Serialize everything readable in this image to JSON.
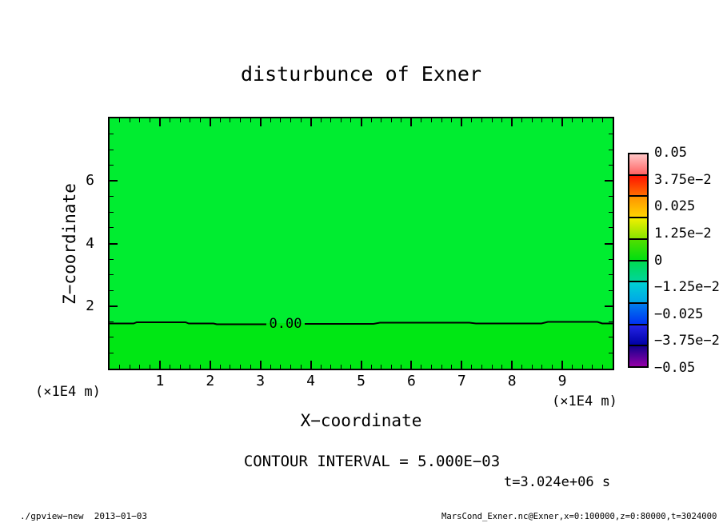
{
  "title": "disturbunce of Exner",
  "chart_data": {
    "type": "heatmap",
    "title": "disturbunce of Exner",
    "xlabel": "X−coordinate",
    "ylabel": "Z−coordinate",
    "x_unit_label": "(×1E4 m)",
    "y_unit_label": "(×1E4 m)",
    "xlim": [
      0,
      10
    ],
    "ylim": [
      0,
      8
    ],
    "x_tick_values": [
      1,
      2,
      3,
      4,
      5,
      6,
      7,
      8,
      9
    ],
    "x_tick_labels": [
      "1",
      "2",
      "3",
      "4",
      "5",
      "6",
      "7",
      "8",
      "9"
    ],
    "y_tick_values": [
      2,
      4,
      6
    ],
    "y_tick_labels": [
      "2",
      "4",
      "6"
    ],
    "x_minor_tick_step": 0.2,
    "y_minor_tick_step": 0.5,
    "field": {
      "description": "tone plot of Exner disturbance, nearly uniform value ~0 over whole domain; single 0.00 contour near z=1.45 (x1E4 m)",
      "regions": [
        {
          "z_range": [
            1.45,
            8
          ],
          "tone_color": "#00ed30"
        },
        {
          "z_range": [
            0,
            1.45
          ],
          "tone_color": "#00e714"
        }
      ]
    },
    "contour_lines": [
      {
        "level": 0.0,
        "label": "0.00",
        "z_position": 1.45
      }
    ],
    "contour_interval_value": 0.005,
    "colorbar": {
      "tick_labels": [
        "0.05",
        "3.75e−2",
        "0.025",
        "1.25e−2",
        "0",
        "−1.25e−2",
        "−0.025",
        "−3.75e−2",
        "−0.05"
      ],
      "value_top": 0.05,
      "value_bottom": -0.05,
      "boxes": [
        [
          "#ffc6c6",
          "#ff6262"
        ],
        [
          "#ff1400",
          "#ff6c00"
        ],
        [
          "#ff9400",
          "#ffd400"
        ],
        [
          "#f0f000",
          "#8ae400"
        ],
        [
          "#50de00",
          "#00de10"
        ],
        [
          "#00da52",
          "#00d698"
        ],
        [
          "#00d2d4",
          "#00a6e8"
        ],
        [
          "#007eee",
          "#0032f2"
        ],
        [
          "#2424e6",
          "#0000a6"
        ],
        [
          "#14008e",
          "#9400a6"
        ]
      ]
    }
  },
  "annotations": {
    "contour_interval_text": "CONTOUR INTERVAL = 5.000E−03",
    "time_text": "t=3.024e+06 s"
  },
  "footer": {
    "left": "./gpview−new  2013−01−03",
    "right": "MarsCond_Exner.nc@Exner,x=0:100000,z=0:80000,t=3024000"
  },
  "colors": {
    "background": "#ffffff",
    "axis": "#000000",
    "tone_upper_green": "#00ed30",
    "tone_lower_green": "#00e714"
  }
}
